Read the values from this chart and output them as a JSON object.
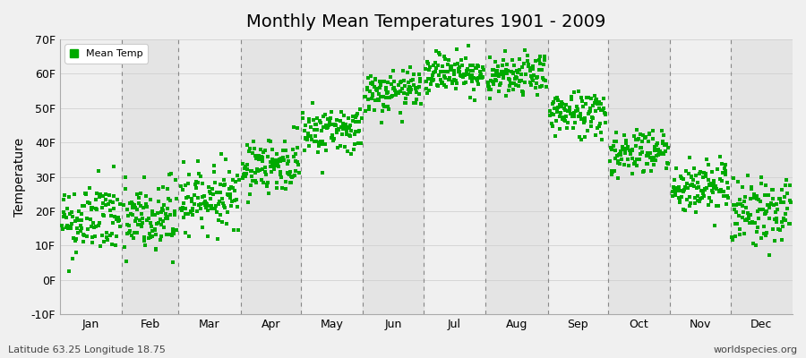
{
  "title": "Monthly Mean Temperatures 1901 - 2009",
  "ylabel": "Temperature",
  "ylim": [
    -10,
    70
  ],
  "yticks": [
    -10,
    0,
    10,
    20,
    30,
    40,
    50,
    60,
    70
  ],
  "ytick_labels": [
    "-10F",
    "0F",
    "10F",
    "20F",
    "30F",
    "40F",
    "50F",
    "60F",
    "70F"
  ],
  "months": [
    "Jan",
    "Feb",
    "Mar",
    "Apr",
    "May",
    "Jun",
    "Jul",
    "Aug",
    "Sep",
    "Oct",
    "Nov",
    "Dec"
  ],
  "month_days": [
    31,
    28,
    31,
    30,
    31,
    30,
    31,
    31,
    30,
    31,
    30,
    31
  ],
  "background_color": "#f0f0f0",
  "plot_bg_light": "#f0f0f0",
  "plot_bg_dark": "#e4e4e4",
  "marker_color": "#00aa00",
  "marker": "s",
  "marker_size": 3,
  "legend_label": "Mean Temp",
  "subtitle_left": "Latitude 63.25 Longitude 18.75",
  "subtitle_right": "worldspecies.org",
  "n_years": 109,
  "monthly_means_F": [
    17.5,
    17.5,
    24.0,
    33.5,
    43.5,
    54.5,
    60.5,
    59.0,
    48.5,
    37.5,
    27.0,
    20.0
  ],
  "monthly_stds_F": [
    5.5,
    6.0,
    4.5,
    4.0,
    3.5,
    3.0,
    3.0,
    3.0,
    3.5,
    3.5,
    4.0,
    5.0
  ],
  "dashed_line_color": "#888888",
  "grid_color": "#cccccc",
  "title_fontsize": 14,
  "axis_fontsize": 9,
  "ylabel_fontsize": 10
}
